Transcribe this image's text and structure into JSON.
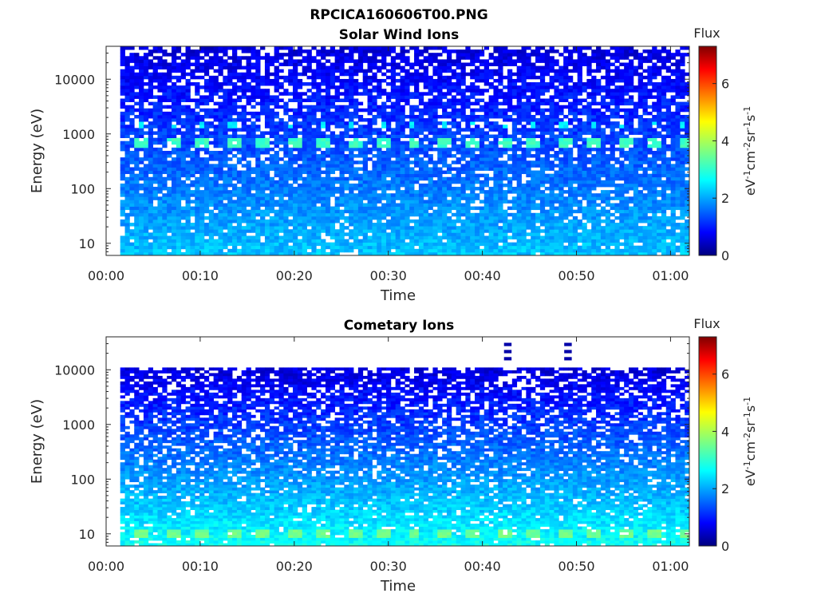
{
  "figure": {
    "title": "RPCICA160606T00.PNG"
  },
  "chart_data": [
    {
      "type": "heatmap",
      "title": "Solar Wind Ions",
      "xlabel": "Time",
      "ylabel": "Energy (eV)",
      "x_ticks": [
        "00:00",
        "00:10",
        "00:20",
        "00:30",
        "00:40",
        "00:50",
        "01:00"
      ],
      "x_range_minutes": [
        0,
        62
      ],
      "data_x_range_minutes": [
        1.5,
        62
      ],
      "y_scale": "log",
      "y_ticks": [
        "10",
        "100",
        "1000",
        "10000"
      ],
      "y_range": [
        6,
        40000
      ],
      "colorbar": {
        "title": "Flux",
        "label": "eV-1cm-2sr-1s-1",
        "ticks": [
          "0",
          "2",
          "4",
          "6"
        ],
        "range": [
          0,
          7.3
        ],
        "colormap": "jet"
      },
      "features": {
        "periodic_band_energy_eV": 680,
        "periodic_band_flux": 3.0,
        "secondary_band_energy_eV": 1450,
        "secondary_band_flux": 2.5,
        "period_minutes": 3.2,
        "max_energy_eV": 40000,
        "low_energy_flux": 2.0
      }
    },
    {
      "type": "heatmap",
      "title": "Cometary Ions",
      "xlabel": "Time",
      "ylabel": "Energy (eV)",
      "x_ticks": [
        "00:00",
        "00:10",
        "00:20",
        "00:30",
        "00:40",
        "00:50",
        "01:00"
      ],
      "x_range_minutes": [
        0,
        62
      ],
      "data_x_range_minutes": [
        1.5,
        62
      ],
      "y_scale": "log",
      "y_ticks": [
        "10",
        "100",
        "1000",
        "10000"
      ],
      "y_range": [
        6,
        40000
      ],
      "colorbar": {
        "title": "Flux",
        "label": "eV-1cm-2sr-1s-1",
        "ticks": [
          "0",
          "2",
          "4",
          "6"
        ],
        "range": [
          0,
          7.3
        ],
        "colormap": "jet"
      },
      "features": {
        "periodic_band_energy_eV": 10,
        "periodic_band_flux": 3.4,
        "period_minutes": 3.2,
        "max_energy_eV": 11000,
        "low_energy_flux": 2.6,
        "spikes_minutes": [
          42.7,
          49.1
        ]
      }
    }
  ]
}
